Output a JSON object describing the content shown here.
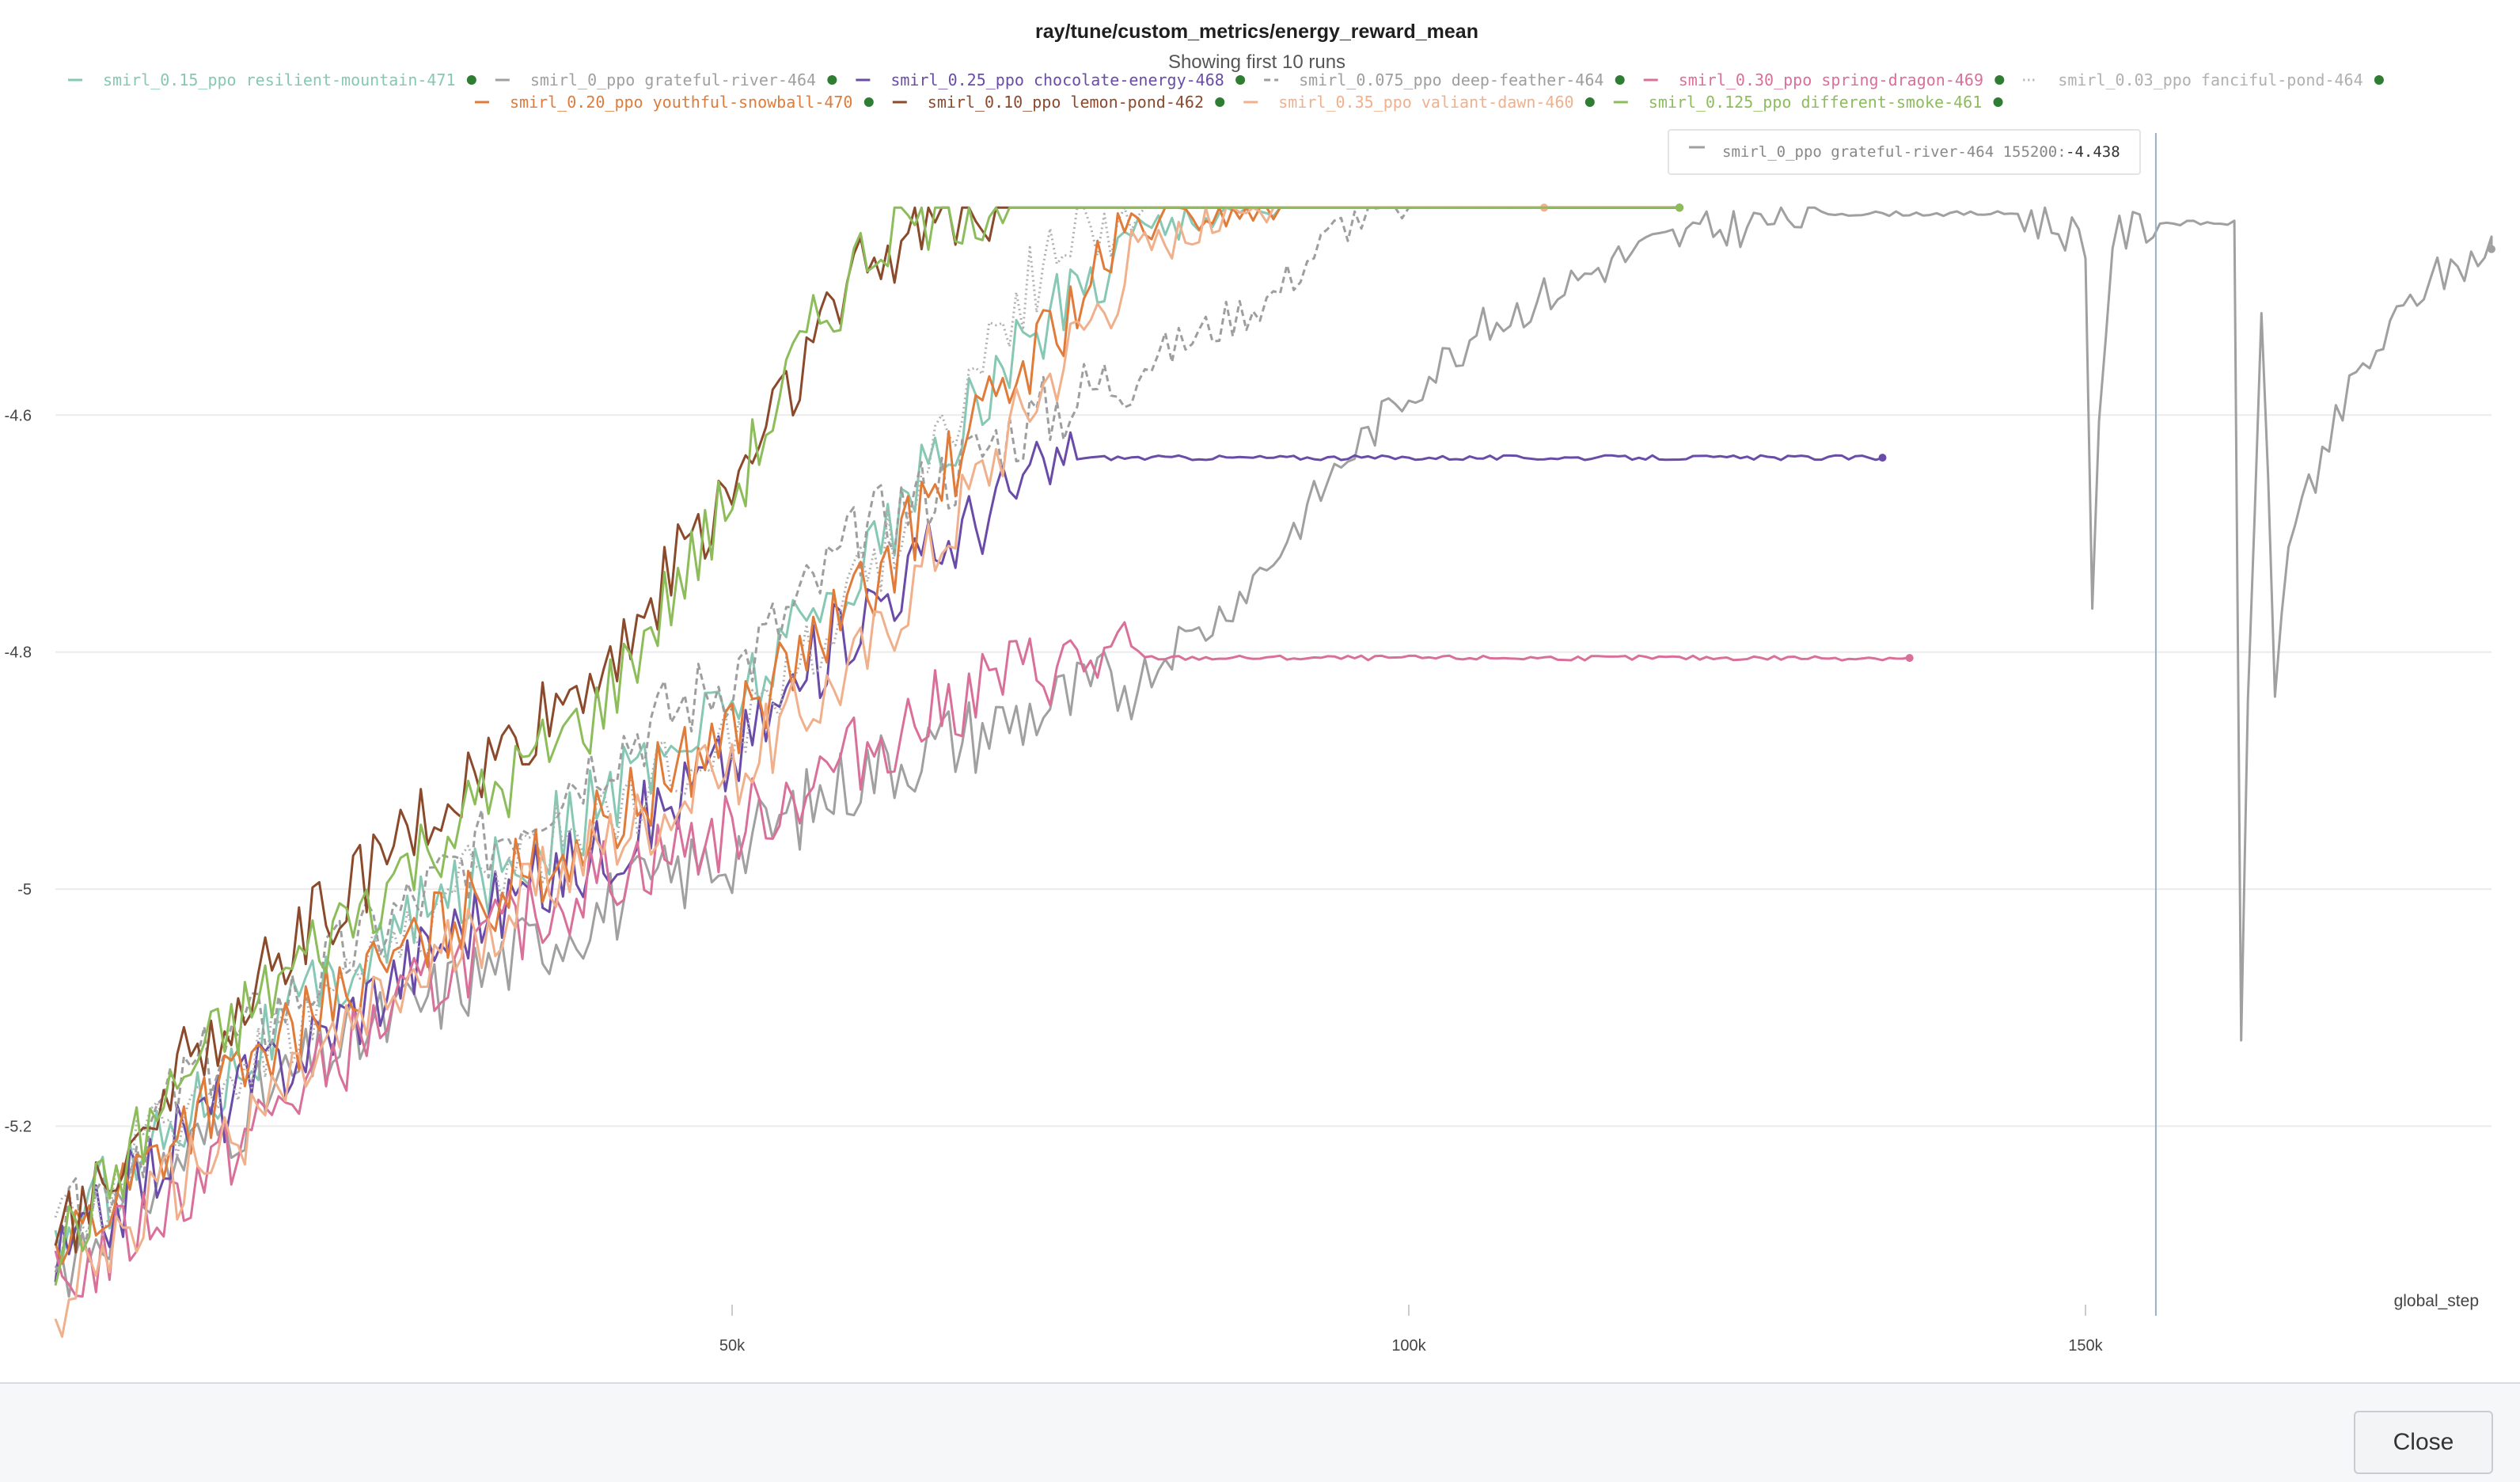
{
  "chart_data": {
    "type": "line",
    "title": "ray/tune/custom_metrics/energy_reward_mean",
    "subtitle": "Showing first 10 runs",
    "xlabel": "global_step",
    "ylabel": "",
    "xlim": [
      0,
      180000
    ],
    "ylim": [
      -5.36,
      -4.35
    ],
    "x_ticks": [
      50000,
      100000,
      150000
    ],
    "x_tick_labels": [
      "50k",
      "100k",
      "150k"
    ],
    "y_ticks": [
      -4.6,
      -4.8,
      -5,
      -5.2
    ],
    "y_tick_labels": [
      "-4.6",
      "-4.8",
      "-5",
      "-5.2"
    ],
    "grid": true,
    "legend_position": "top",
    "series": [
      {
        "name": "smirl_0.15_ppo resilient-mountain-471",
        "color": "#86c8b4",
        "dash": "solid",
        "x": [
          0,
          10000,
          20000,
          30000,
          40000,
          50000,
          60000,
          70000,
          80000,
          90000,
          100000,
          110000,
          120000
        ],
        "y": [
          -5.3,
          -5.18,
          -5.08,
          -5.0,
          -4.93,
          -4.84,
          -4.72,
          -4.56,
          -4.44,
          -4.42,
          -4.42,
          -4.42,
          -4.42
        ]
      },
      {
        "name": "smirl_0_ppo grateful-river-464",
        "color": "#a0a0a0",
        "dash": "solid",
        "x": [
          0,
          10000,
          20000,
          30000,
          40000,
          50000,
          60000,
          70000,
          80000,
          85000,
          90000,
          95000,
          100000,
          105000,
          110000,
          115000,
          120000,
          125000,
          130000,
          135000,
          140000,
          145000,
          150000,
          150500,
          151000,
          152000,
          155000,
          160000,
          161000,
          161500,
          162000,
          163000,
          164000,
          165000,
          170000,
          175000,
          180000
        ],
        "y": [
          -5.32,
          -5.22,
          -5.14,
          -5.08,
          -5.02,
          -4.97,
          -4.9,
          -4.86,
          -4.82,
          -4.78,
          -4.72,
          -4.64,
          -4.58,
          -4.53,
          -4.5,
          -4.47,
          -4.45,
          -4.44,
          -4.43,
          -4.43,
          -4.43,
          -4.43,
          -4.45,
          -4.77,
          -4.6,
          -4.45,
          -4.438,
          -4.438,
          -4.438,
          -5.14,
          -4.85,
          -4.5,
          -4.84,
          -4.7,
          -4.57,
          -4.49,
          -4.46
        ]
      },
      {
        "name": "smirl_0.25_ppo chocolate-energy-468",
        "color": "#6a4ca8",
        "dash": "solid",
        "x": [
          0,
          10000,
          20000,
          30000,
          40000,
          50000,
          60000,
          70000,
          75000,
          80000,
          90000,
          100000,
          110000,
          120000,
          130000,
          135000
        ],
        "y": [
          -5.32,
          -5.2,
          -5.12,
          -5.03,
          -4.97,
          -4.89,
          -4.76,
          -4.67,
          -4.636,
          -4.636,
          -4.636,
          -4.636,
          -4.636,
          -4.636,
          -4.636,
          -4.636
        ]
      },
      {
        "name": "smirl_0.075_ppo deep-feather-464",
        "color": "#9e9e9e",
        "dash": "dash",
        "x": [
          0,
          10000,
          20000,
          30000,
          40000,
          50000,
          60000,
          70000,
          80000,
          90000,
          95000,
          100000,
          110000,
          120000
        ],
        "y": [
          -5.3,
          -5.16,
          -5.07,
          -4.98,
          -4.89,
          -4.82,
          -4.7,
          -4.62,
          -4.56,
          -4.5,
          -4.44,
          -4.42,
          -4.42,
          -4.42
        ]
      },
      {
        "name": "smirl_0.30_ppo spring-dragon-469",
        "color": "#d9709a",
        "dash": "solid",
        "x": [
          0,
          10000,
          20000,
          30000,
          40000,
          50000,
          60000,
          70000,
          75000,
          80000,
          90000,
          100000,
          110000,
          120000,
          130000,
          137000
        ],
        "y": [
          -5.34,
          -5.25,
          -5.15,
          -5.06,
          -4.99,
          -4.95,
          -4.88,
          -4.82,
          -4.81,
          -4.805,
          -4.805,
          -4.805,
          -4.805,
          -4.805,
          -4.805,
          -4.805
        ]
      },
      {
        "name": "smirl_0.03_ppo fanciful-pond-464",
        "color": "#b0b0b0",
        "dash": "dot",
        "x": [
          0,
          10000,
          20000,
          30000,
          40000,
          50000,
          60000,
          70000,
          75000,
          80000,
          90000,
          100000,
          110000
        ],
        "y": [
          -5.3,
          -5.18,
          -5.09,
          -5.0,
          -4.94,
          -4.87,
          -4.74,
          -4.52,
          -4.45,
          -4.42,
          -4.42,
          -4.42,
          -4.42
        ]
      },
      {
        "name": "smirl_0.20_ppo youthful-snowball-470",
        "color": "#e07b39",
        "dash": "solid",
        "x": [
          0,
          10000,
          20000,
          30000,
          40000,
          50000,
          60000,
          70000,
          80000,
          90000,
          100000,
          110000,
          120000
        ],
        "y": [
          -5.31,
          -5.19,
          -5.1,
          -5.02,
          -4.95,
          -4.86,
          -4.75,
          -4.58,
          -4.44,
          -4.42,
          -4.42,
          -4.42,
          -4.42
        ]
      },
      {
        "name": "smirl_0.10_ppo lemon-pond-462",
        "color": "#8b4a2b",
        "dash": "solid",
        "x": [
          0,
          10000,
          20000,
          30000,
          40000,
          45000,
          50000,
          55000,
          60000,
          65000,
          70000,
          80000,
          90000,
          100000,
          110000,
          120000
        ],
        "y": [
          -5.3,
          -5.14,
          -5.02,
          -4.92,
          -4.82,
          -4.74,
          -4.66,
          -4.56,
          -4.47,
          -4.43,
          -4.42,
          -4.42,
          -4.42,
          -4.42,
          -4.42,
          -4.42
        ]
      },
      {
        "name": "smirl_0.35_ppo valiant-dawn-460",
        "color": "#f0b08c",
        "dash": "solid",
        "x": [
          0,
          10000,
          20000,
          30000,
          40000,
          50000,
          60000,
          70000,
          80000,
          90000,
          100000,
          110000
        ],
        "y": [
          -5.35,
          -5.24,
          -5.14,
          -5.05,
          -4.96,
          -4.9,
          -4.8,
          -4.62,
          -4.46,
          -4.42,
          -4.42,
          -4.42
        ]
      },
      {
        "name": "smirl_0.125_ppo different-smoke-461",
        "color": "#8cbd5a",
        "dash": "solid",
        "x": [
          0,
          10000,
          20000,
          30000,
          40000,
          45000,
          50000,
          55000,
          60000,
          65000,
          70000,
          80000,
          90000,
          100000,
          110000,
          120000
        ],
        "y": [
          -5.31,
          -5.15,
          -5.04,
          -4.94,
          -4.85,
          -4.76,
          -4.67,
          -4.55,
          -4.46,
          -4.425,
          -4.42,
          -4.42,
          -4.42,
          -4.42,
          -4.42,
          -4.42
        ]
      }
    ],
    "tooltip": {
      "label": "smirl_0_ppo grateful-river-464 155200:",
      "value": "-4.438",
      "x": 155200
    }
  },
  "footer": {
    "close_label": "Close"
  }
}
